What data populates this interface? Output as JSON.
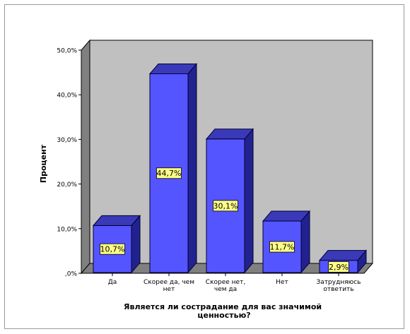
{
  "chart_data": {
    "type": "bar",
    "categories": [
      [
        "Да"
      ],
      [
        "Скорее да, чем",
        "нет"
      ],
      [
        "Скорее нет,",
        "чем да"
      ],
      [
        "Нет"
      ],
      [
        "Затрудняюсь",
        "ответить"
      ]
    ],
    "values": [
      10.7,
      44.7,
      30.1,
      11.7,
      2.9
    ],
    "data_labels": [
      "10,7%",
      "44,7%",
      "30,1%",
      "11,7%",
      "2,9%"
    ],
    "ylabel": "Процент",
    "xlabel": [
      "Является ли сострадание для вас значимой",
      "ценностью?"
    ],
    "ylim": [
      0,
      50
    ],
    "yticks": [
      0,
      10,
      20,
      30,
      40,
      50
    ],
    "ytick_labels": [
      ",0%",
      "10,0%",
      "20,0%",
      "30,0%",
      "40,0%",
      "50,0%"
    ],
    "grid": false,
    "three_d": true,
    "colors": {
      "bar_front": "#5555ff",
      "bar_side": "#22228f",
      "bar_top": "#3a3ab8",
      "bar_outline": "#000033",
      "back_wall": "#c0c0c0",
      "side_wall": "#808080",
      "floor": "#808080",
      "label_bg": "#ffff88"
    }
  }
}
